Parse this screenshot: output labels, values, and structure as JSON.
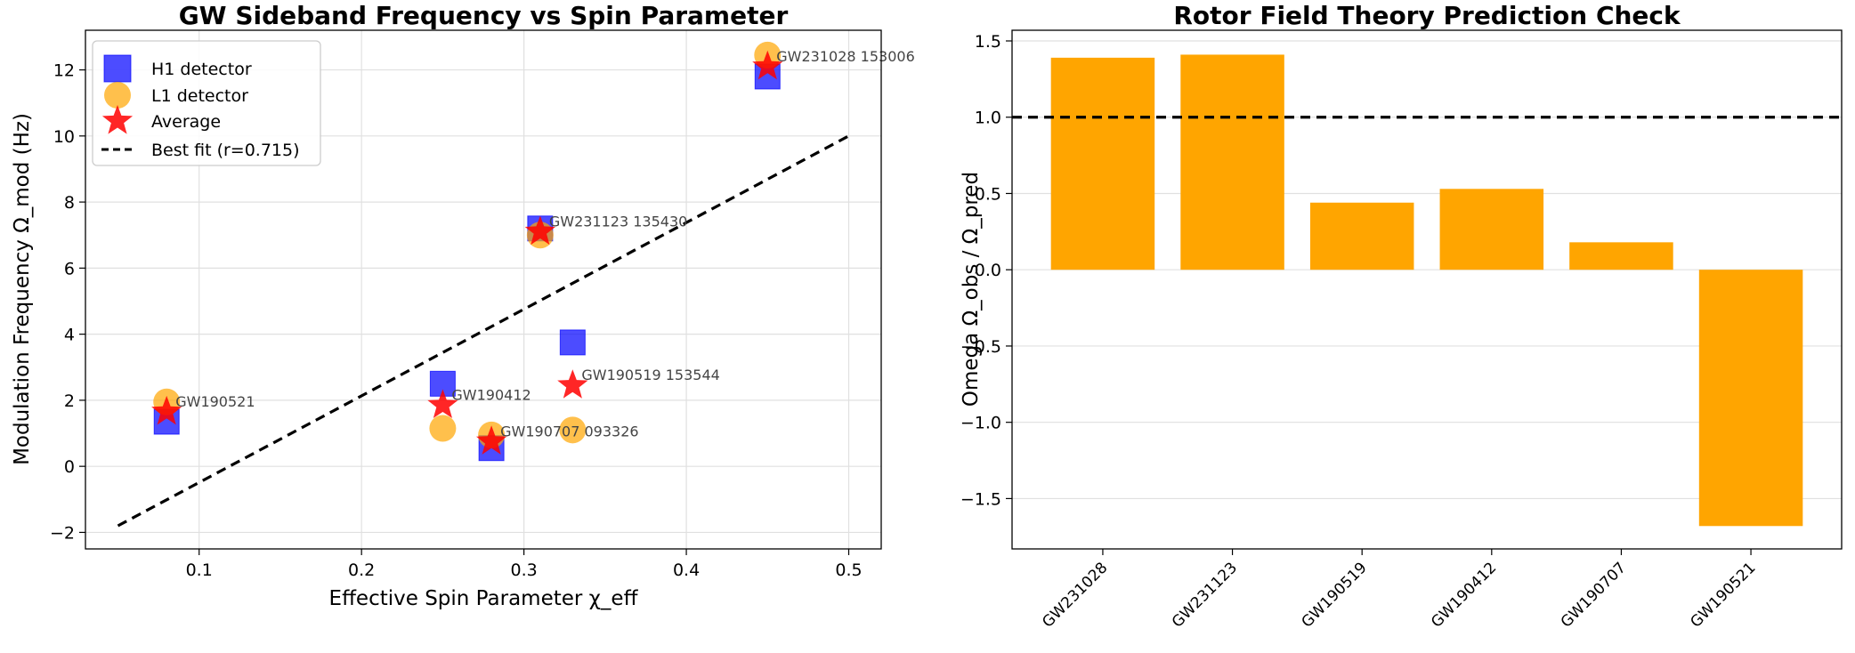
{
  "chart_data": [
    {
      "type": "scatter",
      "title": "GW Sideband Frequency vs Spin Parameter",
      "xlabel": "Effective Spin Parameter  χ_eff",
      "ylabel": "Modulation Frequency  Ω_mod (Hz)",
      "xlim": [
        0.03,
        0.52
      ],
      "ylim": [
        -2.5,
        13.2
      ],
      "xticks": [
        0.1,
        0.2,
        0.3,
        0.4,
        0.5
      ],
      "xtick_labels": [
        "0.1",
        "0.2",
        "0.3",
        "0.4",
        "0.5"
      ],
      "yticks": [
        -2,
        0,
        2,
        4,
        6,
        8,
        10,
        12
      ],
      "ytick_labels": [
        "−2",
        "0",
        "2",
        "4",
        "6",
        "8",
        "10",
        "12"
      ],
      "grid": true,
      "legend_position": "top-left",
      "series": [
        {
          "name": "H1 detector",
          "marker": "square",
          "color": "#0000ff",
          "x": [
            0.45,
            0.31,
            0.33,
            0.25,
            0.28,
            0.08
          ],
          "y": [
            11.8,
            7.2,
            3.75,
            2.5,
            0.55,
            1.35
          ]
        },
        {
          "name": "L1 detector",
          "marker": "circle",
          "color": "#ffa500",
          "x": [
            0.45,
            0.31,
            0.33,
            0.25,
            0.28,
            0.08
          ],
          "y": [
            12.45,
            7.0,
            1.1,
            1.15,
            0.95,
            1.95
          ]
        },
        {
          "name": "Average",
          "marker": "star",
          "color": "#ff0000",
          "x": [
            0.45,
            0.31,
            0.33,
            0.25,
            0.28,
            0.08
          ],
          "y": [
            12.1,
            7.1,
            2.45,
            1.85,
            0.75,
            1.65
          ]
        }
      ],
      "fit": {
        "name": "Best fit (r=0.715)",
        "x": [
          0.05,
          0.5
        ],
        "y": [
          -1.8,
          10.0
        ],
        "color": "#000000"
      },
      "annotations": [
        {
          "text": "GW231028 153006",
          "x": 0.45,
          "y": 12.1
        },
        {
          "text": "GW231123 135430",
          "x": 0.31,
          "y": 7.1
        },
        {
          "text": "GW190519 153544",
          "x": 0.33,
          "y": 2.45
        },
        {
          "text": "GW190412",
          "x": 0.25,
          "y": 1.85
        },
        {
          "text": "GW190707 093326",
          "x": 0.28,
          "y": 0.75
        },
        {
          "text": "GW190521",
          "x": 0.08,
          "y": 1.65
        }
      ]
    },
    {
      "type": "bar",
      "title": "Rotor Field Theory Prediction Check",
      "xlabel": "",
      "ylabel": "Omega Ω_obs / Ω_pred",
      "categories": [
        "GW231028",
        "GW231123",
        "GW190519",
        "GW190412",
        "GW190707",
        "GW190521"
      ],
      "values": [
        1.39,
        1.41,
        0.44,
        0.53,
        0.18,
        -1.68
      ],
      "color": "#ffa500",
      "reference_line": 1.0,
      "ylim": [
        -1.83,
        1.57
      ],
      "yticks": [
        -1.5,
        -1.0,
        -0.5,
        0.0,
        0.5,
        1.0,
        1.5
      ],
      "ytick_labels": [
        "−1.5",
        "−1.0",
        "−0.5",
        "0.0",
        "0.5",
        "1.0",
        "1.5"
      ],
      "grid": true
    }
  ]
}
